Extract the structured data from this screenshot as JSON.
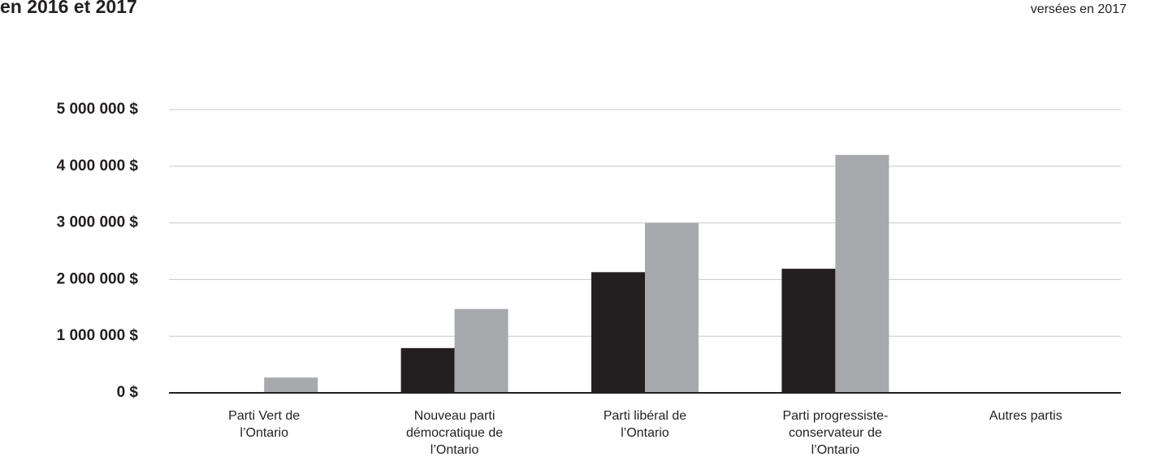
{
  "chart_data": {
    "type": "bar",
    "title": "en 2016 et 2017",
    "subtitle": "versées en 2017",
    "categories": [
      "Parti Vert de\nl’Ontario",
      "Nouveau parti\ndémocratique de\nl’Ontario",
      "Parti libéral de\nl’Ontario",
      "Parti progressiste-\nconservateur de\nl’Ontario",
      "Autres partis"
    ],
    "series": [
      {
        "color": "#231f20",
        "values": [
          0,
          790000,
          2130000,
          2190000,
          0
        ]
      },
      {
        "color": "#a7a9ac",
        "values": [
          270000,
          1480000,
          3000000,
          4200000,
          0
        ]
      }
    ],
    "ylim": [
      0,
      5000000
    ],
    "yticks": [
      {
        "value": 0,
        "label": "0 $"
      },
      {
        "value": 1000000,
        "label": "1 000 000 $"
      },
      {
        "value": 2000000,
        "label": "2 000 000 $"
      },
      {
        "value": 3000000,
        "label": "3 000 000 $"
      },
      {
        "value": 4000000,
        "label": "4 000 000 $"
      },
      {
        "value": 5000000,
        "label": "5 000 000 $"
      }
    ],
    "grid": true
  }
}
